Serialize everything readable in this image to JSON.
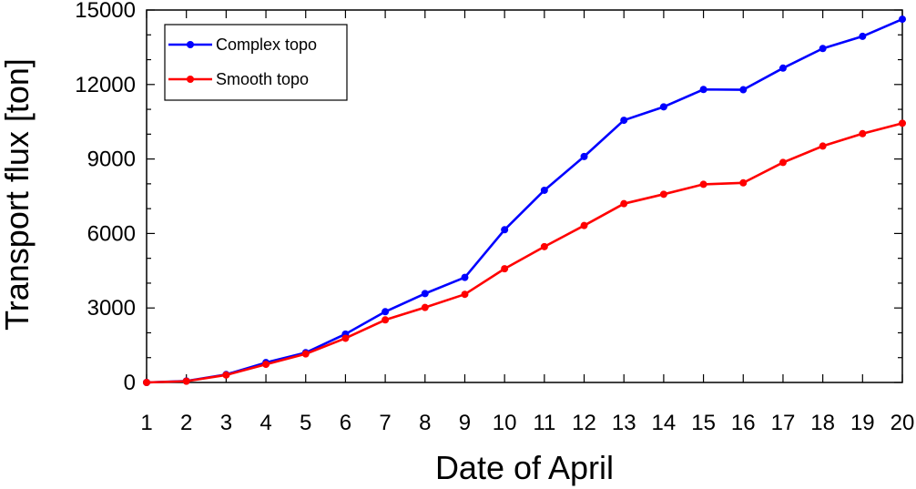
{
  "chart_data": {
    "type": "line",
    "title": "",
    "xlabel": "Date of April",
    "ylabel": "Transport flux [ton]",
    "x": [
      1,
      2,
      3,
      4,
      5,
      6,
      7,
      8,
      9,
      10,
      11,
      12,
      13,
      14,
      15,
      16,
      17,
      18,
      19,
      20
    ],
    "xlim": [
      1,
      20
    ],
    "ylim": [
      0,
      15000
    ],
    "yticks": [
      0,
      3000,
      6000,
      9000,
      12000,
      15000
    ],
    "ytick_labels": [
      "0",
      "3000",
      "6000",
      "9000",
      "12000",
      "15000"
    ],
    "xtick_labels": [
      "1",
      "2",
      "3",
      "4",
      "5",
      "6",
      "7",
      "8",
      "9",
      "10",
      "11",
      "12",
      "13",
      "14",
      "15",
      "16",
      "17",
      "18",
      "19",
      "20"
    ],
    "grid": false,
    "legend_position": "top-left",
    "series": [
      {
        "name": "Complex topo",
        "color": "#0000ff",
        "values": [
          0,
          60,
          320,
          800,
          1200,
          1950,
          2850,
          3580,
          4230,
          6150,
          7740,
          9100,
          10560,
          11100,
          11800,
          11790,
          12660,
          13450,
          13940,
          14630
        ]
      },
      {
        "name": "Smooth topo",
        "color": "#ff0000",
        "values": [
          0,
          50,
          300,
          730,
          1150,
          1780,
          2520,
          3020,
          3550,
          4580,
          5470,
          6320,
          7200,
          7580,
          7980,
          8040,
          8860,
          9520,
          10020,
          10440
        ]
      }
    ]
  }
}
